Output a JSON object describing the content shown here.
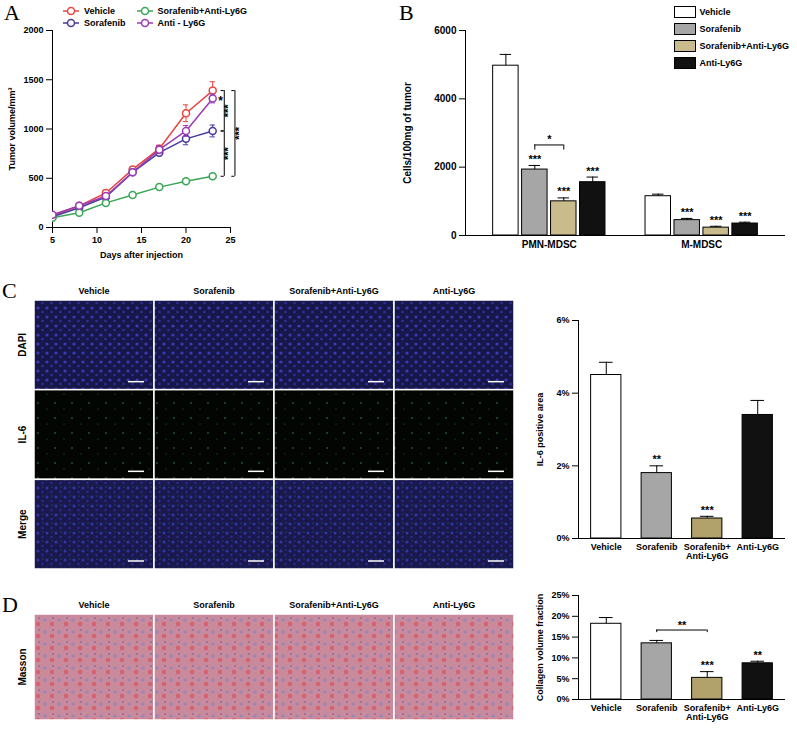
{
  "chart_data": [
    {
      "type": "line",
      "title": "A",
      "x_label": "Days after injection",
      "y_label": "Tumor volume/mm³",
      "x": [
        5,
        8,
        11,
        14,
        17,
        20,
        23
      ],
      "xlim": [
        5,
        25
      ],
      "xticks": [
        5,
        10,
        15,
        20,
        25
      ],
      "ylim": [
        0,
        2000
      ],
      "yticks": [
        0,
        500,
        1000,
        1500,
        2000
      ],
      "marker": "circle",
      "legend": "top",
      "series": [
        {
          "name": "Vehicle",
          "color": "#e8463f",
          "values": [
            120,
            220,
            350,
            590,
            800,
            1160,
            1390
          ],
          "errors": [
            15,
            20,
            30,
            25,
            35,
            85,
            90
          ]
        },
        {
          "name": "Sorafenib",
          "color": "#4a3a9c",
          "values": [
            110,
            200,
            310,
            560,
            760,
            900,
            980
          ],
          "errors": [
            12,
            18,
            25,
            25,
            30,
            60,
            60
          ]
        },
        {
          "name": "Sorafenib+Anti-Ly6G",
          "color": "#3aa755",
          "values": [
            100,
            150,
            250,
            330,
            410,
            470,
            520
          ],
          "errors": [
            10,
            12,
            20,
            20,
            20,
            25,
            25
          ]
        },
        {
          "name": "Anti - Ly6G",
          "color": "#9c3bb5",
          "values": [
            130,
            220,
            320,
            560,
            790,
            980,
            1310
          ],
          "errors": [
            15,
            18,
            25,
            30,
            40,
            55,
            45
          ],
          "significance": "*"
        }
      ],
      "comparisons": [
        {
          "from": "Vehicle",
          "to": "Sorafenib",
          "text": "***"
        },
        {
          "from": "Sorafenib",
          "to": "Sorafenib+Anti-Ly6G",
          "text": "***"
        },
        {
          "from": "Vehicle",
          "to": "Sorafenib+Anti-Ly6G",
          "text": "***"
        }
      ]
    },
    {
      "type": "bar",
      "title": "B",
      "y_label": "Cells/100mg of tumor",
      "categories": [
        "PMN-MDSC",
        "M-MDSC"
      ],
      "ylim": [
        0,
        6000
      ],
      "yticks": [
        0,
        2000,
        4000,
        6000
      ],
      "legend": "top-right",
      "series": [
        {
          "name": "Vehicle",
          "color": "#ffffff",
          "values": [
            4970,
            1150
          ],
          "errors": [
            330,
            60
          ]
        },
        {
          "name": "Sorafenib",
          "color": "#a6a6a6",
          "values": [
            1930,
            450
          ],
          "errors": [
            120,
            50
          ],
          "significance": [
            "***",
            "***"
          ]
        },
        {
          "name": "Sorafenib+Anti-Ly6G",
          "color": "#c9bb8c",
          "values": [
            1000,
            230
          ],
          "errors": [
            100,
            40
          ],
          "significance": [
            "***",
            "***"
          ]
        },
        {
          "name": "Anti-Ly6G",
          "color": "#111111",
          "values": [
            1560,
            350
          ],
          "errors": [
            150,
            40
          ],
          "significance": [
            "***",
            "***"
          ]
        }
      ],
      "comparisons": [
        {
          "category": "PMN-MDSC",
          "from": "Sorafenib",
          "to": "Sorafenib+Anti-Ly6G",
          "text": "*"
        }
      ]
    },
    {
      "type": "bar",
      "y_label": "IL-6 positive area",
      "categories": [
        "Vehicle",
        "Sorafenib",
        "Sorafenib+\nAnti-Ly6G",
        "Anti-Ly6G"
      ],
      "values": [
        4.5,
        1.8,
        0.55,
        3.4
      ],
      "errors": [
        0.35,
        0.2,
        0.06,
        0.4
      ],
      "colors": [
        "#ffffff",
        "#a6a6a6",
        "#b0a26a",
        "#111111"
      ],
      "significance": [
        null,
        "**",
        "***",
        null
      ],
      "ylim": [
        0,
        6
      ],
      "yticks": [
        {
          "value": 0,
          "label": "0%"
        },
        {
          "value": 2,
          "label": "2%"
        },
        {
          "value": 4,
          "label": "4%"
        },
        {
          "value": 6,
          "label": "6%"
        }
      ]
    },
    {
      "type": "bar",
      "y_label": "Collagen volume fraction",
      "categories": [
        "Vehicle",
        "Sorafenib",
        "Sorafenib+\nAnti-Ly6G",
        "Anti-Ly6G"
      ],
      "values": [
        18.2,
        13.5,
        5.2,
        8.7
      ],
      "errors": [
        1.5,
        0.7,
        1.5,
        0.5
      ],
      "colors": [
        "#ffffff",
        "#a6a6a6",
        "#b0a26a",
        "#111111"
      ],
      "significance": [
        null,
        null,
        "***",
        "**"
      ],
      "ylim": [
        0,
        25
      ],
      "yticks": [
        {
          "value": 0,
          "label": "0%"
        },
        {
          "value": 5,
          "label": "5%"
        },
        {
          "value": 10,
          "label": "10%"
        },
        {
          "value": 15,
          "label": "15%"
        },
        {
          "value": 20,
          "label": "20%"
        },
        {
          "value": 25,
          "label": "25%"
        }
      ],
      "comparisons": [
        {
          "from": "Sorafenib",
          "to": "Sorafenib+\nAnti-Ly6G",
          "text": "**"
        }
      ]
    }
  ],
  "image_panels": [
    {
      "title": "C",
      "columns": [
        "Vehicle",
        "Sorafenib",
        "Sorafenib+Anti-Ly6G",
        "Anti-Ly6G"
      ],
      "rows": [
        "DAPI",
        "IL-6",
        "Merge"
      ]
    },
    {
      "title": "D",
      "columns": [
        "Vehicle",
        "Sorafenib",
        "Sorafenib+Anti-Ly6G",
        "Anti-Ly6G"
      ],
      "rows": [
        "Masson"
      ]
    }
  ]
}
